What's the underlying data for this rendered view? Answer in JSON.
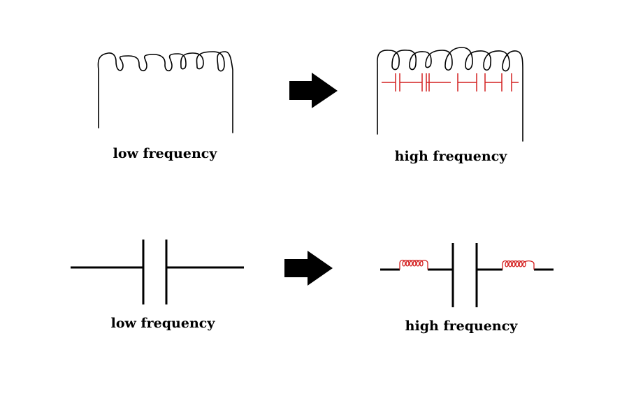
{
  "labels": {
    "inductor_low": "low frequency",
    "inductor_high": "high frequency",
    "capacitor_low": "low frequency",
    "capacitor_high": "high frequency"
  },
  "colors": {
    "line": "#000000",
    "parasitic": "#d42020",
    "background": "#ffffff"
  },
  "icons": {
    "transition": "right-arrow-icon"
  }
}
